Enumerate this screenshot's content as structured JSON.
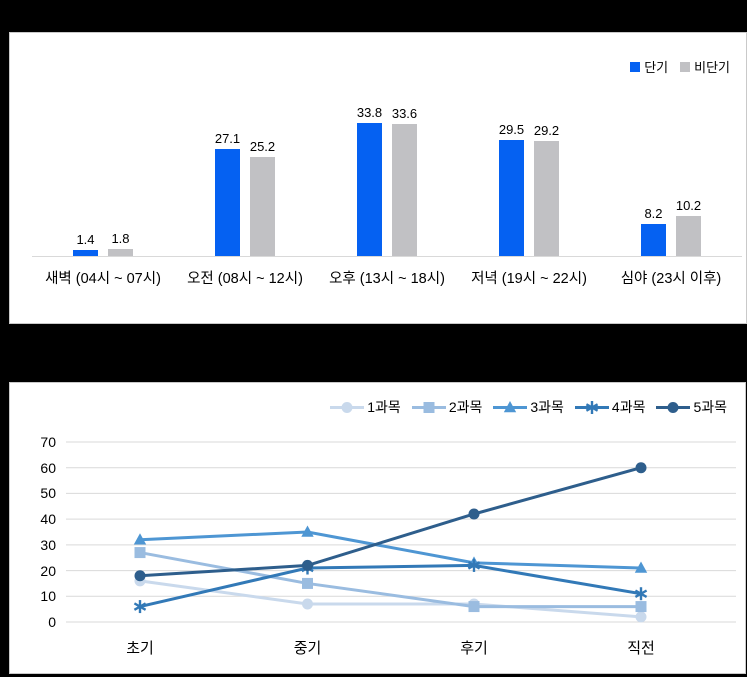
{
  "chart_data": [
    {
      "type": "bar",
      "title": "",
      "legend_position": "top-right",
      "data_labels": true,
      "grid": false,
      "ylim": [
        0,
        40
      ],
      "categories": [
        "새벽 (04시 ~ 07시)",
        "오전 (08시 ~ 12시)",
        "오후 (13시 ~ 18시)",
        "저녁 (19시 ~ 22시)",
        "심야 (23시 이후)"
      ],
      "series": [
        {
          "name": "단기",
          "color": "#0561f2",
          "values": [
            1.4,
            27.1,
            33.8,
            29.5,
            8.2
          ]
        },
        {
          "name": "비단기",
          "color": "#c1c1c4",
          "values": [
            1.8,
            25.2,
            33.6,
            29.2,
            10.2
          ]
        }
      ]
    },
    {
      "type": "line",
      "title": "",
      "legend_position": "top",
      "grid": true,
      "ylim": [
        0,
        70
      ],
      "y_ticks": [
        0,
        10,
        20,
        30,
        40,
        50,
        60,
        70
      ],
      "categories": [
        "초기",
        "중기",
        "후기",
        "직전"
      ],
      "series": [
        {
          "name": "1과목",
          "color": "#c9d9ec",
          "marker": "circle",
          "values": [
            16,
            7,
            7,
            2
          ]
        },
        {
          "name": "2과목",
          "color": "#9abce0",
          "marker": "square",
          "values": [
            27,
            15,
            6,
            6
          ]
        },
        {
          "name": "3과목",
          "color": "#4e96d3",
          "marker": "triangle",
          "values": [
            32,
            35,
            23,
            21
          ]
        },
        {
          "name": "4과목",
          "color": "#3279b7",
          "marker": "asterisk",
          "values": [
            6,
            21,
            22,
            11
          ]
        },
        {
          "name": "5과목",
          "color": "#2e5e8c",
          "marker": "circle",
          "values": [
            18,
            22,
            42,
            60
          ]
        }
      ]
    }
  ],
  "colors": {
    "background": "#000000",
    "panel": "#ffffff",
    "gridline": "#d9d9d9",
    "text": "#000000"
  }
}
